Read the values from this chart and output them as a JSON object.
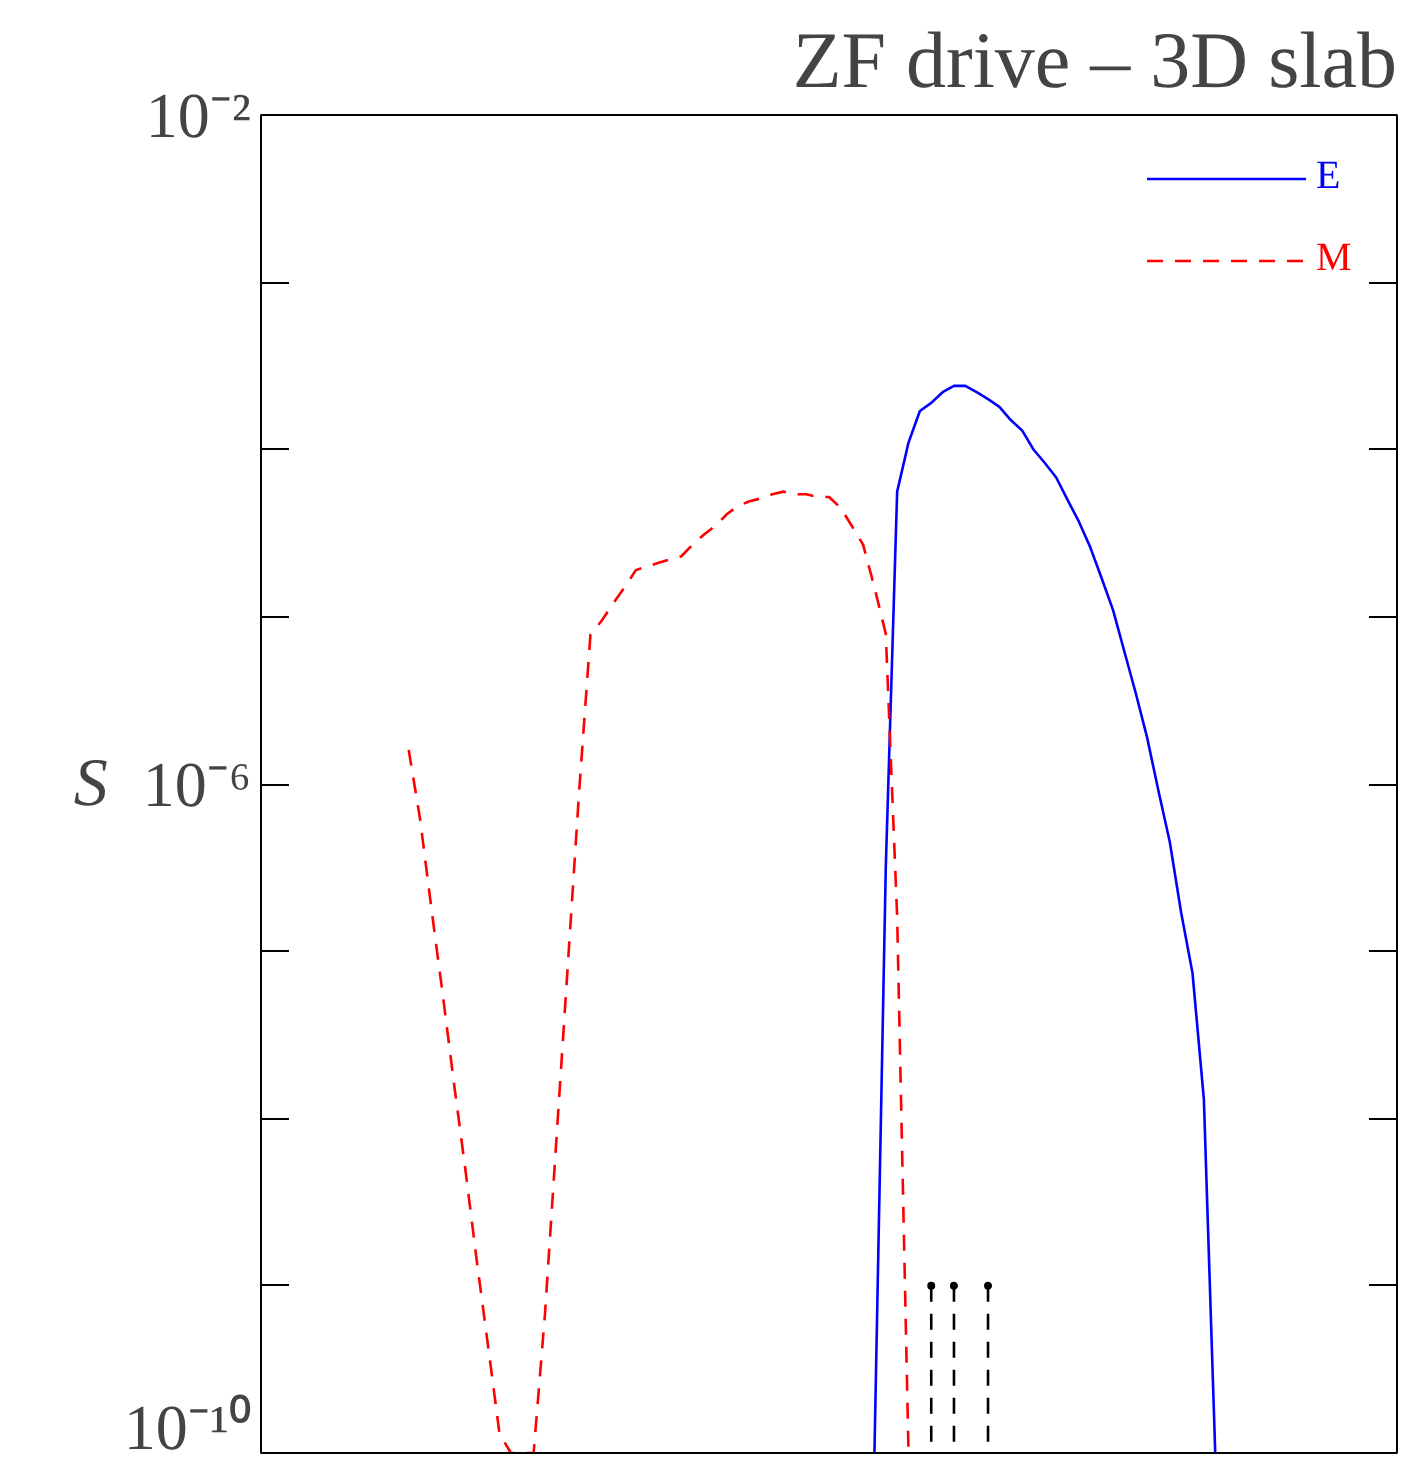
{
  "chart_data": {
    "type": "line",
    "title": "ZF drive – 3D slab",
    "ylabel": "S",
    "log": "y",
    "grid": false,
    "legend": "top right",
    "tick_labels": "y",
    "marker": "none",
    "categories": [
      null,
      null,
      null,
      null,
      null,
      null,
      null,
      null,
      null,
      null,
      null,
      null,
      null,
      null,
      null,
      null,
      null,
      null,
      null,
      null,
      null,
      null,
      null,
      null,
      null,
      null,
      null,
      null,
      null,
      null,
      null,
      null,
      null,
      null,
      null,
      null,
      null,
      null,
      null,
      null,
      null,
      null,
      null,
      null,
      null,
      null,
      null,
      null,
      null,
      null,
      null,
      null,
      null,
      null,
      null,
      null,
      null,
      null,
      null,
      null,
      null,
      null,
      null,
      null,
      null,
      null,
      null,
      null,
      null,
      null,
      null,
      null,
      null,
      null,
      null,
      null,
      null,
      null,
      null,
      null,
      null,
      null,
      null,
      null,
      null,
      null,
      null,
      null,
      null,
      null,
      null,
      null,
      null,
      null,
      null,
      null,
      null,
      null,
      null,
      null,
      null
    ],
    "ylim": [
      1e-10,
      0.01
    ],
    "yticks": [
      {
        "value": 1e-10,
        "label": "10⁻¹⁰"
      },
      {
        "value": 1e-09,
        "label": null
      },
      {
        "value": 1e-08,
        "label": null
      },
      {
        "value": 1e-07,
        "label": null
      },
      {
        "value": 1e-06,
        "label": "10⁻⁶"
      },
      {
        "value": 1e-05,
        "label": null
      },
      {
        "value": 0.0001,
        "label": null
      },
      {
        "value": 0.001,
        "label": null
      },
      {
        "value": 0.01,
        "label": "10⁻²"
      }
    ],
    "series": [
      {
        "name": "E",
        "color": "#0000ff",
        "line_style": "solid",
        "values": [
          null,
          null,
          null,
          null,
          null,
          null,
          null,
          null,
          null,
          null,
          null,
          null,
          null,
          null,
          null,
          null,
          null,
          null,
          null,
          null,
          null,
          null,
          null,
          null,
          null,
          null,
          null,
          null,
          null,
          null,
          null,
          null,
          null,
          null,
          null,
          null,
          null,
          null,
          null,
          null,
          null,
          null,
          null,
          null,
          null,
          null,
          null,
          null,
          null,
          null,
          null,
          null,
          null,
          null,
          1e-10,
          3.2e-07,
          5.6e-05,
          0.00011,
          0.00017,
          0.00019,
          0.00022,
          0.00024,
          0.00024,
          0.00022,
          0.0002,
          0.00018,
          0.00015,
          0.00013,
          0.0001,
          8.3e-05,
          6.8e-05,
          5e-05,
          3.7e-05,
          2.6e-05,
          1.7e-05,
          1.1e-05,
          6.2e-06,
          3.5e-06,
          1.9e-06,
          9.1e-07,
          4.5e-07,
          1.7e-07,
          7.4e-08,
          1.3e-08,
          1e-10,
          null,
          null,
          null,
          null,
          null,
          null,
          null,
          null,
          null,
          null,
          null,
          null,
          null,
          null,
          null,
          null
        ]
      },
      {
        "name": "M",
        "color": "#ff0000",
        "line_style": "dashed",
        "values": [
          null,
          null,
          null,
          null,
          null,
          null,
          null,
          null,
          null,
          null,
          null,
          null,
          null,
          1.6e-06,
          6.2e-07,
          1.8e-07,
          5.5e-08,
          1.6e-08,
          4.9e-09,
          1.4e-09,
          4.3e-10,
          1.3e-10,
          1e-10,
          1e-10,
          1e-10,
          6.8e-10,
          7.4e-09,
          8.1e-08,
          8.9e-07,
          7.8e-06,
          9.5e-06,
          1.2e-05,
          1.5e-05,
          1.9e-05,
          2e-05,
          2.1e-05,
          2.2e-05,
          2.3e-05,
          2.7e-05,
          3.1e-05,
          3.5e-05,
          4.1e-05,
          4.6e-05,
          4.9e-05,
          5.1e-05,
          5.4e-05,
          5.6e-05,
          5.4e-05,
          5.4e-05,
          5.2e-05,
          5.2e-05,
          4.5e-05,
          3.5e-05,
          2.7e-05,
          1.5e-05,
          7.9e-06,
          1.6e-07,
          1e-10,
          null,
          null,
          null,
          null,
          null,
          null,
          null,
          null,
          null,
          null,
          null,
          null,
          null,
          null,
          null,
          null,
          null,
          null,
          null,
          null,
          null,
          null,
          null,
          null,
          null,
          null,
          null,
          null,
          null,
          null,
          null,
          null,
          null,
          null,
          null,
          null,
          null,
          null,
          null,
          null,
          null,
          null,
          null
        ]
      },
      {
        "type": "lollipop",
        "color": "#000000",
        "line_style": "dashed",
        "marker": "circle",
        "values": [
          null,
          null,
          null,
          null,
          null,
          null,
          null,
          null,
          null,
          null,
          null,
          null,
          null,
          null,
          null,
          null,
          null,
          null,
          null,
          null,
          null,
          null,
          null,
          null,
          null,
          null,
          null,
          null,
          null,
          null,
          null,
          null,
          null,
          null,
          null,
          null,
          null,
          null,
          null,
          null,
          null,
          null,
          null,
          null,
          null,
          null,
          null,
          null,
          null,
          null,
          null,
          null,
          null,
          null,
          null,
          null,
          null,
          null,
          null,
          1e-09,
          null,
          1e-09,
          null,
          null,
          1e-09,
          null,
          null,
          null,
          null,
          null,
          null,
          null,
          null,
          null,
          null,
          null,
          null,
          null,
          null,
          null,
          null,
          null,
          null,
          null,
          null,
          null,
          null,
          null,
          null,
          null,
          null,
          null,
          null,
          null,
          null,
          null,
          null,
          null,
          null,
          null,
          null
        ]
      }
    ]
  }
}
